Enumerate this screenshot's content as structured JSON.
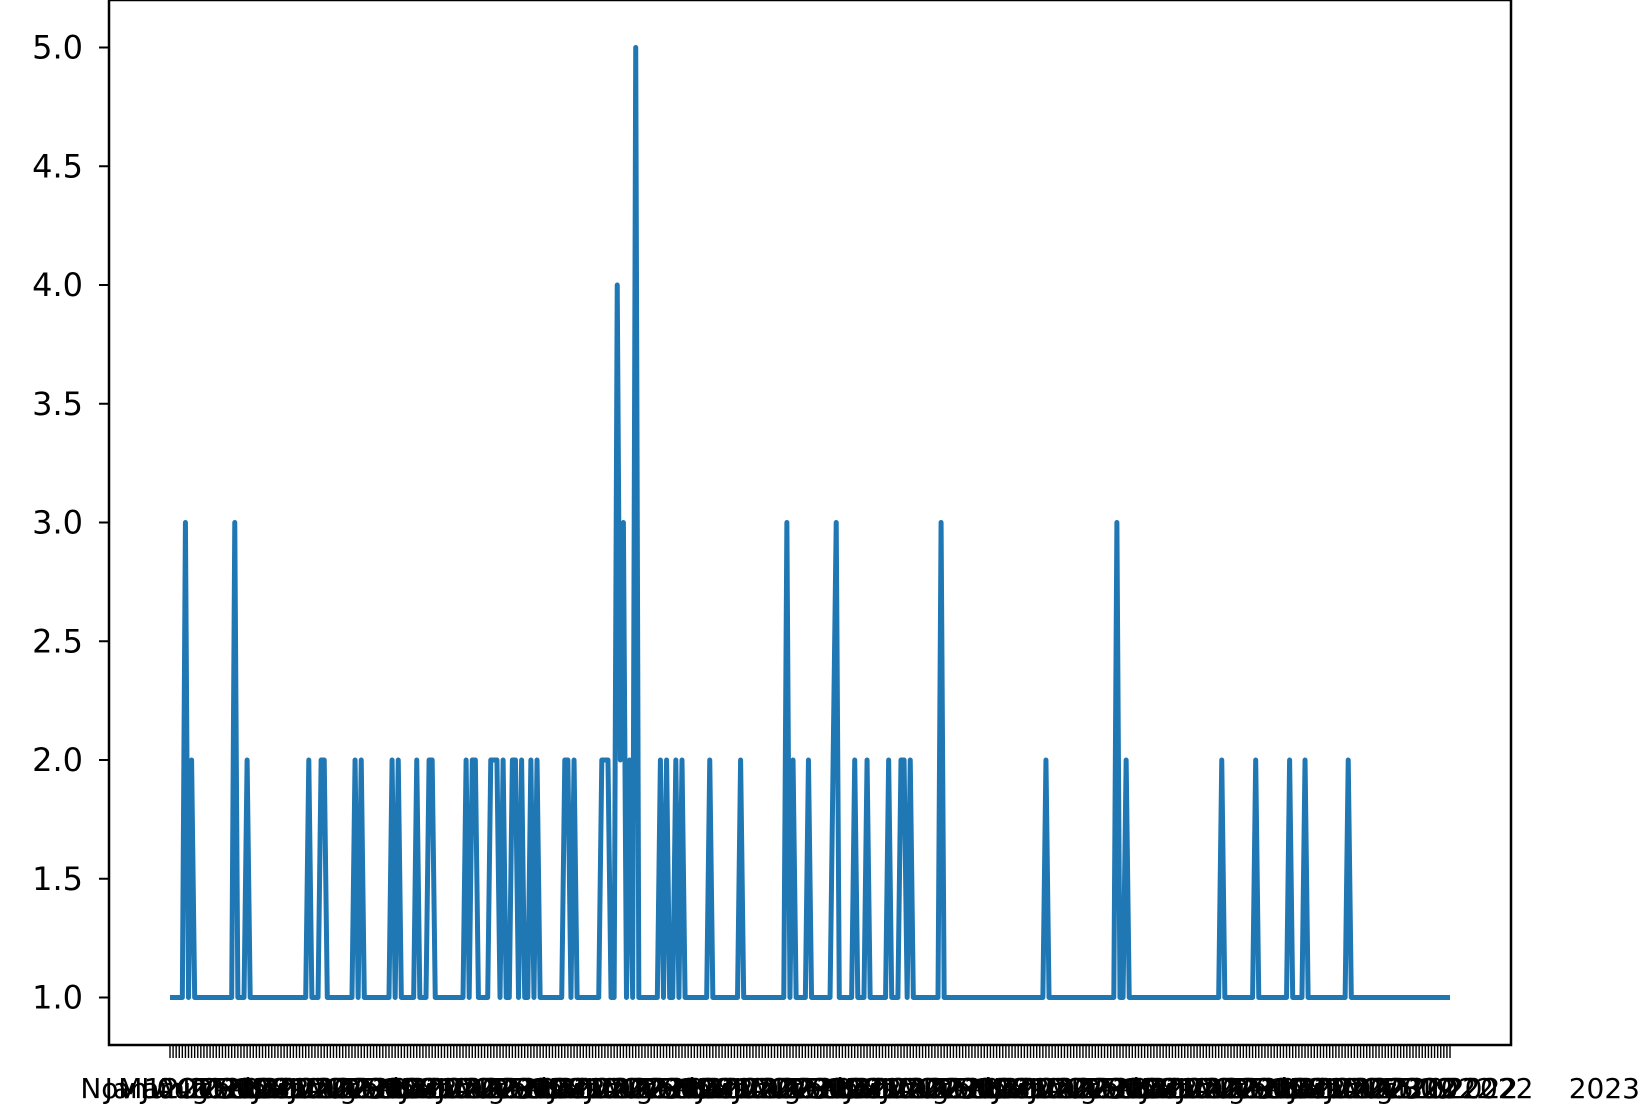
{
  "chart_data": {
    "type": "line",
    "title": "",
    "xlabel": "",
    "ylabel": "",
    "ylim": [
      0.8,
      5.2
    ],
    "yticks": [
      "1.0",
      "1.5",
      "2.0",
      "2.5",
      "3.0",
      "3.5",
      "4.0",
      "4.5",
      "5.0"
    ],
    "ytick_values": [
      1.0,
      1.5,
      2.0,
      2.5,
      3.0,
      3.5,
      4.0,
      4.5,
      5.0
    ],
    "x_tick_labels_note": "overlapping illegible date labels",
    "x_visible_fragment": "2023",
    "grid": false,
    "legend": "none",
    "series_color": "#1f77b4",
    "series": [
      {
        "values": [
          1,
          1,
          1,
          1,
          1,
          3,
          1,
          2,
          1,
          1,
          1,
          1,
          1,
          1,
          1,
          1,
          1,
          1,
          1,
          1,
          1,
          3,
          1,
          1,
          1,
          2,
          1,
          1,
          1,
          1,
          1,
          1,
          1,
          1,
          1,
          1,
          1,
          1,
          1,
          1,
          1,
          1,
          1,
          1,
          1,
          2,
          1,
          1,
          1,
          2,
          2,
          1,
          1,
          1,
          1,
          1,
          1,
          1,
          1,
          1,
          2,
          1,
          2,
          1,
          1,
          1,
          1,
          1,
          1,
          1,
          1,
          1,
          2,
          1,
          2,
          1,
          1,
          1,
          1,
          1,
          2,
          1,
          1,
          1,
          2,
          2,
          1,
          1,
          1,
          1,
          1,
          1,
          1,
          1,
          1,
          1,
          2,
          1,
          2,
          2,
          1,
          1,
          1,
          1,
          2,
          2,
          2,
          1,
          2,
          1,
          1,
          2,
          2,
          1,
          2,
          1,
          1,
          2,
          1,
          2,
          1,
          1,
          1,
          1,
          1,
          1,
          1,
          1,
          2,
          2,
          1,
          2,
          1,
          1,
          1,
          1,
          1,
          1,
          1,
          1,
          2,
          2,
          2,
          1,
          1,
          4,
          2,
          3,
          1,
          2,
          1,
          5,
          1,
          1,
          1,
          1,
          1,
          1,
          1,
          2,
          1,
          2,
          1,
          1,
          2,
          1,
          2,
          1,
          1,
          1,
          1,
          1,
          1,
          1,
          1,
          2,
          1,
          1,
          1,
          1,
          1,
          1,
          1,
          1,
          1,
          2,
          1,
          1,
          1,
          1,
          1,
          1,
          1,
          1,
          1,
          1,
          1,
          1,
          1,
          1,
          3,
          1,
          2,
          1,
          1,
          1,
          1,
          2,
          1,
          1,
          1,
          1,
          1,
          1,
          1,
          2,
          3,
          1,
          1,
          1,
          1,
          1,
          2,
          1,
          1,
          1,
          2,
          1,
          1,
          1,
          1,
          1,
          1,
          2,
          1,
          1,
          1,
          2,
          2,
          1,
          2,
          1,
          1,
          1,
          1,
          1,
          1,
          1,
          1,
          1,
          3,
          1,
          1,
          1,
          1,
          1,
          1,
          1,
          1,
          1,
          1,
          1,
          1,
          1,
          1,
          1,
          1,
          1,
          1,
          1,
          1,
          1,
          1,
          1,
          1,
          1,
          1,
          1,
          1,
          1,
          1,
          1,
          1,
          1,
          2,
          1,
          1,
          1,
          1,
          1,
          1,
          1,
          1,
          1,
          1,
          1,
          1,
          1,
          1,
          1,
          1,
          1,
          1,
          1,
          1,
          1,
          1,
          3,
          1,
          1,
          2,
          1,
          1,
          1,
          1,
          1,
          1,
          1,
          1,
          1,
          1,
          1,
          1,
          1,
          1,
          1,
          1,
          1,
          1,
          1,
          1,
          1,
          1,
          1,
          1,
          1,
          1,
          1,
          1,
          1,
          1,
          2,
          1,
          1,
          1,
          1,
          1,
          1,
          1,
          1,
          1,
          1,
          2,
          1,
          1,
          1,
          1,
          1,
          1,
          1,
          1,
          1,
          1,
          2,
          1,
          1,
          1,
          1,
          2,
          1,
          1,
          1,
          1,
          1,
          1,
          1,
          1,
          1,
          1,
          1,
          1,
          1,
          2,
          1,
          1,
          1,
          1,
          1,
          1,
          1,
          1,
          1,
          1,
          1,
          1,
          1,
          1,
          1,
          1,
          1,
          1,
          1,
          1,
          1,
          1,
          1,
          1,
          1,
          1,
          1,
          1,
          1,
          1,
          1,
          1,
          1
        ]
      }
    ]
  }
}
